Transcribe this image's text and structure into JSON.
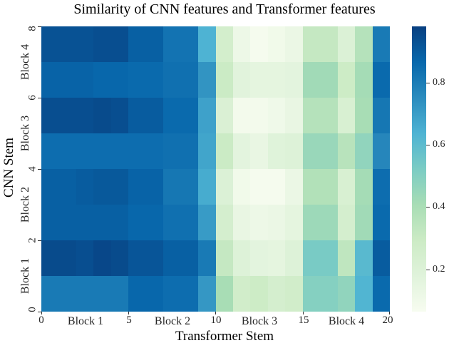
{
  "title": "Similarity of CNN features and Transformer features",
  "chart_data": {
    "type": "heatmap",
    "title": "Similarity of CNN features and Transformer features",
    "xlabel": "Transformer Stem",
    "ylabel": "CNN Stem",
    "x_range": [
      0,
      20
    ],
    "y_range": [
      0,
      8
    ],
    "n_cols": 20,
    "n_rows": 8,
    "x_ticks": [
      "0",
      "5",
      "10",
      "15",
      "20"
    ],
    "y_ticks": [
      "0",
      "2",
      "4",
      "6",
      "8"
    ],
    "x_block_labels": [
      "Block 1",
      "Block 2",
      "Block 3",
      "Block 4"
    ],
    "y_block_labels": [
      "Block 1",
      "Block 2",
      "Block 3",
      "Block 4"
    ],
    "colorbar_ticks": [
      "0.2",
      "0.4",
      "0.6",
      "0.8"
    ],
    "colormap": "GnBu",
    "vmin": 0.07,
    "vmax": 0.98,
    "grid": false,
    "legend_position": "colorbar-right",
    "row_order": "top-to-bottom corresponds to CNN Stem y = 8 down to 0",
    "values": [
      [
        0.93,
        0.93,
        0.93,
        0.94,
        0.94,
        0.89,
        0.89,
        0.83,
        0.83,
        0.64,
        0.26,
        0.12,
        0.08,
        0.1,
        0.13,
        0.32,
        0.32,
        0.21,
        0.37,
        0.81
      ],
      [
        0.88,
        0.88,
        0.88,
        0.87,
        0.87,
        0.86,
        0.86,
        0.84,
        0.84,
        0.73,
        0.3,
        0.18,
        0.16,
        0.16,
        0.17,
        0.43,
        0.43,
        0.29,
        0.42,
        0.86
      ],
      [
        0.94,
        0.94,
        0.94,
        0.95,
        0.94,
        0.9,
        0.9,
        0.86,
        0.86,
        0.69,
        0.22,
        0.09,
        0.09,
        0.11,
        0.14,
        0.37,
        0.37,
        0.23,
        0.41,
        0.82
      ],
      [
        0.85,
        0.85,
        0.85,
        0.85,
        0.85,
        0.85,
        0.85,
        0.84,
        0.84,
        0.68,
        0.3,
        0.17,
        0.14,
        0.19,
        0.2,
        0.45,
        0.45,
        0.36,
        0.47,
        0.77
      ],
      [
        0.89,
        0.89,
        0.9,
        0.91,
        0.91,
        0.88,
        0.88,
        0.82,
        0.82,
        0.66,
        0.21,
        0.1,
        0.08,
        0.08,
        0.13,
        0.38,
        0.38,
        0.23,
        0.42,
        0.85
      ],
      [
        0.89,
        0.89,
        0.89,
        0.89,
        0.89,
        0.87,
        0.87,
        0.84,
        0.84,
        0.71,
        0.25,
        0.14,
        0.12,
        0.13,
        0.16,
        0.44,
        0.44,
        0.25,
        0.43,
        0.86
      ],
      [
        0.95,
        0.95,
        0.94,
        0.96,
        0.95,
        0.92,
        0.92,
        0.89,
        0.89,
        0.81,
        0.32,
        0.2,
        0.17,
        0.16,
        0.2,
        0.53,
        0.53,
        0.34,
        0.61,
        0.9
      ],
      [
        0.81,
        0.81,
        0.81,
        0.81,
        0.81,
        0.87,
        0.87,
        0.85,
        0.85,
        0.72,
        0.41,
        0.27,
        0.29,
        0.25,
        0.27,
        0.5,
        0.5,
        0.47,
        0.63,
        0.86
      ]
    ],
    "colormap_stops": [
      {
        "t": 0.0,
        "color": "#f7fcf0"
      },
      {
        "t": 0.125,
        "color": "#e0f3db"
      },
      {
        "t": 0.25,
        "color": "#ccebc5"
      },
      {
        "t": 0.375,
        "color": "#a8ddb5"
      },
      {
        "t": 0.5,
        "color": "#7bccc4"
      },
      {
        "t": 0.625,
        "color": "#4eb3d3"
      },
      {
        "t": 0.75,
        "color": "#2b8cbe"
      },
      {
        "t": 0.875,
        "color": "#0868ac"
      },
      {
        "t": 1.0,
        "color": "#084081"
      }
    ],
    "colors": {
      "high_similarity": "#084081",
      "low_similarity": "#f7fcf0",
      "tick_color": "#333333",
      "text_color": "#262626"
    }
  }
}
